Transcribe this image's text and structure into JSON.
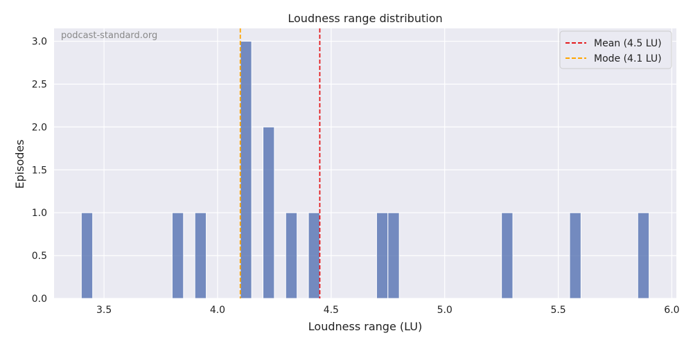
{
  "chart_data": {
    "type": "bar",
    "title": "Loudness range distribution",
    "xlabel": "Loudness range (LU)",
    "ylabel": "Episodes",
    "watermark": "podcast-standard.org",
    "xlim": [
      3.28,
      6.02
    ],
    "ylim": [
      0,
      3.15
    ],
    "xticks": [
      "3.5",
      "4.0",
      "4.5",
      "5.0",
      "5.5",
      "6.0"
    ],
    "yticks": [
      "0.0",
      "0.5",
      "1.0",
      "1.5",
      "2.0",
      "2.5",
      "3.0"
    ],
    "bin_width": 0.05,
    "bins": [
      {
        "x_start": 3.4,
        "x_end": 3.45,
        "count": 1
      },
      {
        "x_start": 3.8,
        "x_end": 3.85,
        "count": 1
      },
      {
        "x_start": 3.9,
        "x_end": 3.95,
        "count": 1
      },
      {
        "x_start": 4.1,
        "x_end": 4.15,
        "count": 3
      },
      {
        "x_start": 4.2,
        "x_end": 4.25,
        "count": 2
      },
      {
        "x_start": 4.3,
        "x_end": 4.35,
        "count": 1
      },
      {
        "x_start": 4.4,
        "x_end": 4.45,
        "count": 1
      },
      {
        "x_start": 4.7,
        "x_end": 4.75,
        "count": 1
      },
      {
        "x_start": 4.75,
        "x_end": 4.8,
        "count": 1
      },
      {
        "x_start": 5.25,
        "x_end": 5.3,
        "count": 1
      },
      {
        "x_start": 5.55,
        "x_end": 5.6,
        "count": 1
      },
      {
        "x_start": 5.85,
        "x_end": 5.9,
        "count": 1
      }
    ],
    "reference_lines": [
      {
        "label": "Mean (4.5 LU)",
        "x": 4.45,
        "color": "#e41a1c"
      },
      {
        "label": "Mode (4.1 LU)",
        "x": 4.1,
        "color": "#ffa500"
      }
    ],
    "grid": true,
    "legend_position": "top-right",
    "colors": {
      "bar": "#5975b3",
      "background": "#eaeaf2",
      "grid": "#ffffff",
      "watermark": "#888888"
    }
  }
}
